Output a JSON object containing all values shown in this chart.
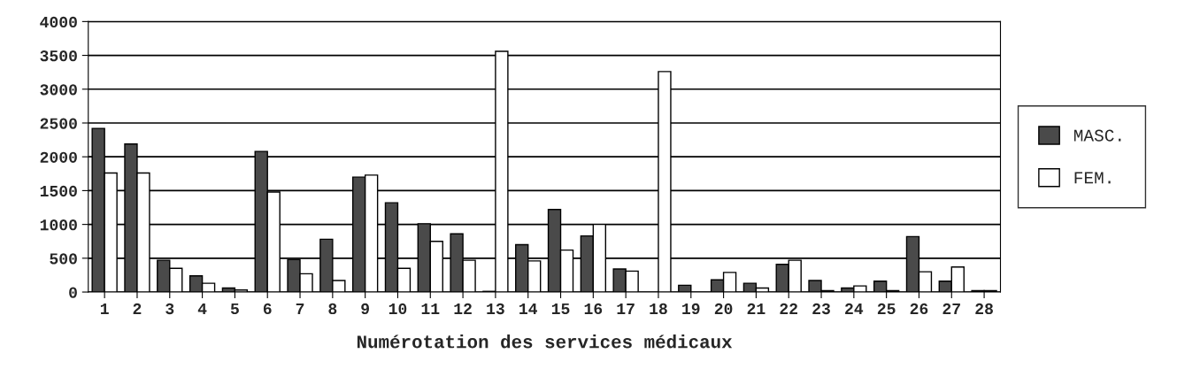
{
  "chart_data": {
    "type": "bar",
    "xlabel": "Numérotation des services médicaux",
    "categories": [
      "1",
      "2",
      "3",
      "4",
      "5",
      "6",
      "7",
      "8",
      "9",
      "10",
      "11",
      "12",
      "13",
      "14",
      "15",
      "16",
      "17",
      "18",
      "19",
      "20",
      "21",
      "22",
      "23",
      "24",
      "25",
      "26",
      "27",
      "28"
    ],
    "series": [
      {
        "name": "MASC.",
        "color": "#4a4a4a",
        "values": [
          2420,
          2190,
          470,
          240,
          60,
          2080,
          480,
          780,
          1700,
          1320,
          1010,
          860,
          10,
          700,
          1220,
          830,
          340,
          null,
          100,
          180,
          130,
          410,
          170,
          60,
          160,
          820,
          160,
          20
        ]
      },
      {
        "name": "FEM.",
        "color": "#ffffff",
        "values": [
          1760,
          1760,
          350,
          130,
          30,
          1480,
          270,
          170,
          1730,
          350,
          750,
          470,
          3560,
          460,
          620,
          1000,
          310,
          3260,
          null,
          290,
          60,
          470,
          20,
          90,
          20,
          300,
          370,
          20
        ]
      }
    ],
    "ylim": [
      0,
      4000
    ],
    "yticks": [
      0,
      500,
      1000,
      1500,
      2000,
      2500,
      3000,
      3500,
      4000
    ],
    "grid": "y",
    "legend": "right"
  }
}
